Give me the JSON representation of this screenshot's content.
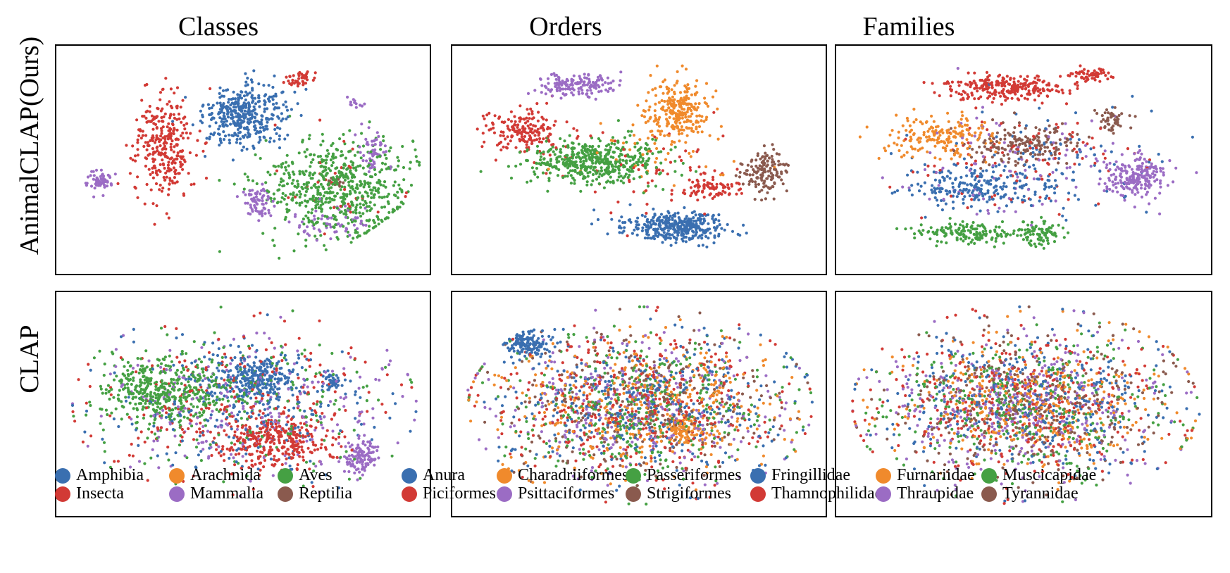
{
  "columns": [
    "Classes",
    "Orders",
    "Families"
  ],
  "rows": [
    "AnimalCLAP(Ours)",
    "CLAP"
  ],
  "palette": [
    "#3a6fb0",
    "#f08a2c",
    "#45a043",
    "#d23a35",
    "#9b6cc4",
    "#8a5a4e"
  ],
  "legends": [
    {
      "items": [
        {
          "label": "Amphibia",
          "color": "#3a6fb0"
        },
        {
          "label": "Arachnida",
          "color": "#f08a2c"
        },
        {
          "label": "Aves",
          "color": "#45a043"
        },
        {
          "label": "Insecta",
          "color": "#d23a35"
        },
        {
          "label": "Mammalia",
          "color": "#9b6cc4"
        },
        {
          "label": "Reptilia",
          "color": "#8a5a4e"
        }
      ]
    },
    {
      "items": [
        {
          "label": "Anura",
          "color": "#3a6fb0"
        },
        {
          "label": "Charadriiformes",
          "color": "#f08a2c"
        },
        {
          "label": "Passeriformes",
          "color": "#45a043"
        },
        {
          "label": "Piciformes",
          "color": "#d23a35"
        },
        {
          "label": "Psittaciformes",
          "color": "#9b6cc4"
        },
        {
          "label": "Strigiformes",
          "color": "#8a5a4e"
        }
      ]
    },
    {
      "items": [
        {
          "label": "Fringillidae",
          "color": "#3a6fb0"
        },
        {
          "label": "Furnariidae",
          "color": "#f08a2c"
        },
        {
          "label": "Muscicapidae",
          "color": "#45a043"
        },
        {
          "label": "Thamnophilidae",
          "color": "#d23a35"
        },
        {
          "label": "Thraupidae",
          "color": "#9b6cc4"
        },
        {
          "label": "Tyrannidae",
          "color": "#8a5a4e"
        }
      ]
    }
  ],
  "chart_data": [
    {
      "type": "scatter",
      "title": "Classes",
      "row": "AnimalCLAP(Ours)",
      "series_names": [
        "Amphibia",
        "Arachnida",
        "Aves",
        "Insecta",
        "Mammalia",
        "Reptilia"
      ],
      "clustered": true,
      "clusters": [
        [
          0,
          0.5,
          0.28,
          0.13,
          0.16,
          380
        ],
        [
          3,
          0.27,
          0.43,
          0.1,
          0.3,
          300
        ],
        [
          3,
          0.66,
          0.1,
          0.05,
          0.05,
          40
        ],
        [
          2,
          0.77,
          0.63,
          0.24,
          0.26,
          600
        ],
        [
          4,
          0.09,
          0.6,
          0.04,
          0.05,
          60
        ],
        [
          4,
          0.54,
          0.7,
          0.05,
          0.08,
          70
        ],
        [
          4,
          0.74,
          0.8,
          0.14,
          0.08,
          60
        ],
        [
          4,
          0.82,
          0.22,
          0.02,
          0.03,
          12
        ],
        [
          4,
          0.87,
          0.45,
          0.05,
          0.12,
          50
        ],
        [
          5,
          0.76,
          0.6,
          0.03,
          0.03,
          20
        ],
        [
          3,
          0.77,
          0.6,
          0.22,
          0.24,
          30
        ]
      ]
    },
    {
      "type": "scatter",
      "title": "Orders",
      "row": "AnimalCLAP(Ours)",
      "series_names": [
        "Anura",
        "Charadriiformes",
        "Passeriformes",
        "Piciformes",
        "Psittaciformes",
        "Strigiformes"
      ],
      "clustered": true,
      "clusters": [
        [
          0,
          0.6,
          0.82,
          0.16,
          0.08,
          380
        ],
        [
          1,
          0.6,
          0.25,
          0.1,
          0.15,
          260
        ],
        [
          2,
          0.37,
          0.5,
          0.22,
          0.12,
          480
        ],
        [
          3,
          0.17,
          0.35,
          0.12,
          0.12,
          180
        ],
        [
          3,
          0.7,
          0.63,
          0.09,
          0.06,
          80
        ],
        [
          4,
          0.32,
          0.13,
          0.12,
          0.06,
          160
        ],
        [
          5,
          0.85,
          0.55,
          0.07,
          0.12,
          140
        ],
        [
          3,
          0.5,
          0.55,
          0.3,
          0.25,
          60
        ],
        [
          1,
          0.55,
          0.5,
          0.25,
          0.2,
          40
        ]
      ]
    },
    {
      "type": "scatter",
      "title": "Families",
      "row": "AnimalCLAP(Ours)",
      "series_names": [
        "Fringillidae",
        "Furnariidae",
        "Muscicapidae",
        "Thamnophilidae",
        "Thraupidae",
        "Tyrannidae"
      ],
      "clustered": true,
      "clusters": [
        [
          3,
          0.45,
          0.14,
          0.2,
          0.07,
          260
        ],
        [
          3,
          0.69,
          0.08,
          0.06,
          0.04,
          60
        ],
        [
          1,
          0.25,
          0.38,
          0.17,
          0.12,
          180
        ],
        [
          5,
          0.48,
          0.42,
          0.18,
          0.1,
          180
        ],
        [
          5,
          0.75,
          0.3,
          0.05,
          0.06,
          50
        ],
        [
          4,
          0.82,
          0.58,
          0.1,
          0.12,
          200
        ],
        [
          0,
          0.35,
          0.63,
          0.22,
          0.1,
          200
        ],
        [
          2,
          0.35,
          0.85,
          0.18,
          0.06,
          160
        ],
        [
          2,
          0.55,
          0.85,
          0.06,
          0.08,
          80
        ],
        [
          0,
          0.55,
          0.5,
          0.35,
          0.3,
          120
        ],
        [
          4,
          0.5,
          0.5,
          0.35,
          0.3,
          100
        ],
        [
          3,
          0.5,
          0.5,
          0.35,
          0.3,
          100
        ]
      ]
    },
    {
      "type": "scatter",
      "title": "Classes",
      "row": "CLAP",
      "series_names": [
        "Amphibia",
        "Arachnida",
        "Aves",
        "Insecta",
        "Mammalia",
        "Reptilia"
      ],
      "clustered": false,
      "clusters": [
        [
          2,
          0.27,
          0.42,
          0.2,
          0.18,
          400
        ],
        [
          0,
          0.53,
          0.36,
          0.12,
          0.13,
          250
        ],
        [
          3,
          0.58,
          0.68,
          0.18,
          0.14,
          300
        ],
        [
          4,
          0.83,
          0.75,
          0.06,
          0.1,
          120
        ],
        [
          0,
          0.75,
          0.38,
          0.03,
          0.05,
          40
        ],
        [
          0,
          0.5,
          0.5,
          0.45,
          0.38,
          250
        ],
        [
          3,
          0.5,
          0.5,
          0.45,
          0.38,
          250
        ],
        [
          4,
          0.5,
          0.5,
          0.45,
          0.38,
          250
        ],
        [
          2,
          0.5,
          0.5,
          0.45,
          0.38,
          200
        ]
      ]
    },
    {
      "type": "scatter",
      "title": "Orders",
      "row": "CLAP",
      "series_names": [
        "Anura",
        "Charadriiformes",
        "Passeriformes",
        "Piciformes",
        "Psittaciformes",
        "Strigiformes"
      ],
      "clustered": false,
      "clusters": [
        [
          0,
          0.18,
          0.2,
          0.07,
          0.08,
          150
        ],
        [
          1,
          0.62,
          0.62,
          0.08,
          0.08,
          100
        ],
        [
          0,
          0.5,
          0.5,
          0.44,
          0.38,
          380
        ],
        [
          1,
          0.5,
          0.5,
          0.44,
          0.38,
          380
        ],
        [
          2,
          0.5,
          0.5,
          0.44,
          0.38,
          380
        ],
        [
          3,
          0.5,
          0.5,
          0.44,
          0.38,
          380
        ],
        [
          4,
          0.5,
          0.5,
          0.44,
          0.38,
          300
        ],
        [
          5,
          0.5,
          0.5,
          0.44,
          0.38,
          300
        ]
      ]
    },
    {
      "type": "scatter",
      "title": "Families",
      "row": "CLAP",
      "series_names": [
        "Fringillidae",
        "Furnariidae",
        "Muscicapidae",
        "Thamnophilidae",
        "Thraupidae",
        "Tyrannidae"
      ],
      "clustered": false,
      "clusters": [
        [
          0,
          0.5,
          0.5,
          0.44,
          0.38,
          360
        ],
        [
          1,
          0.5,
          0.5,
          0.44,
          0.38,
          360
        ],
        [
          2,
          0.5,
          0.5,
          0.44,
          0.38,
          360
        ],
        [
          3,
          0.5,
          0.5,
          0.44,
          0.38,
          360
        ],
        [
          4,
          0.5,
          0.5,
          0.44,
          0.38,
          360
        ],
        [
          5,
          0.5,
          0.5,
          0.44,
          0.38,
          360
        ]
      ]
    }
  ]
}
